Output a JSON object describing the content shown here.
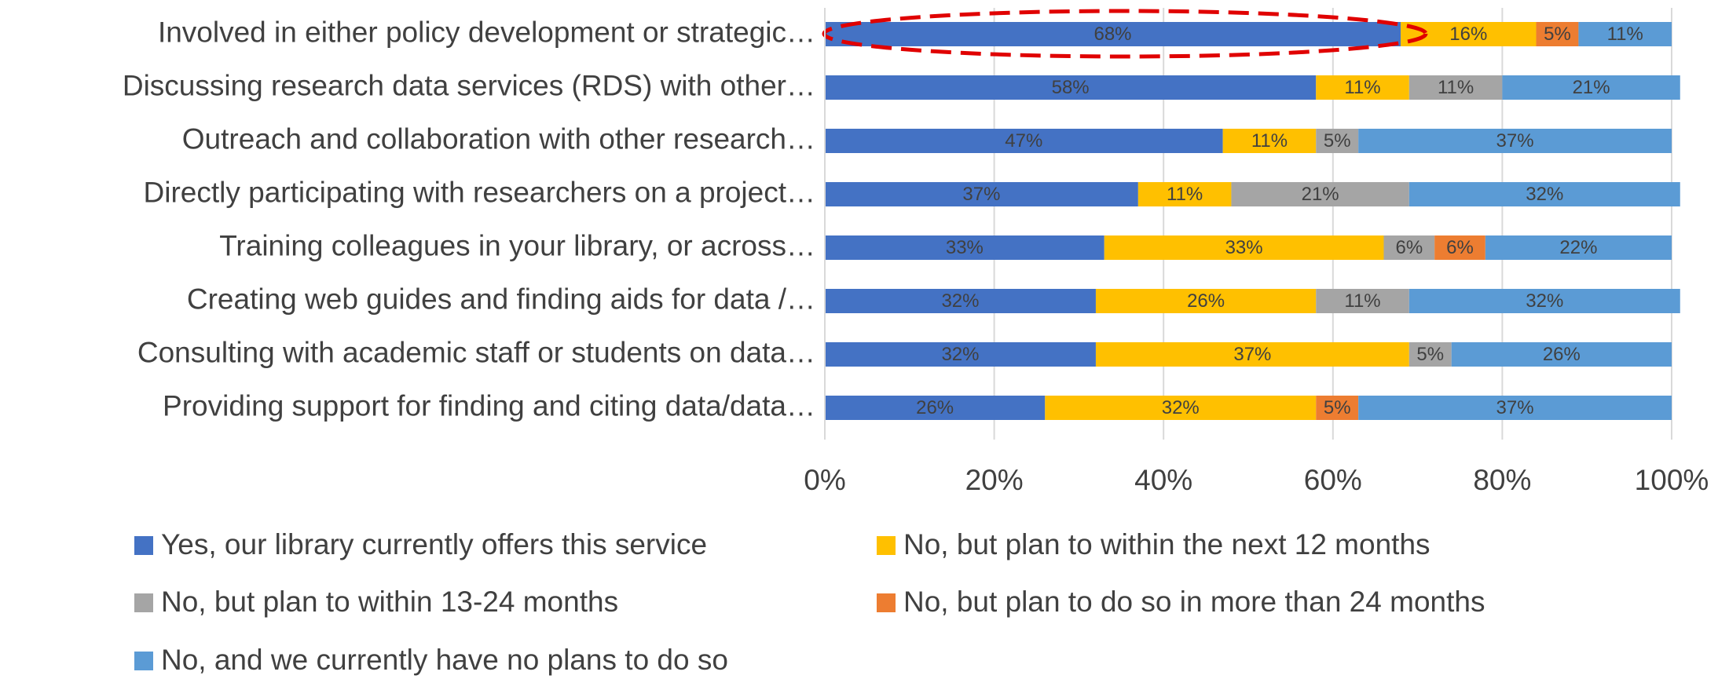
{
  "chart_data": {
    "type": "stacked_barh",
    "categories": [
      "Involved in either policy development or strategic…",
      "Discussing research data services (RDS) with other…",
      "Outreach and collaboration with other research…",
      "Directly participating with researchers on a project…",
      "Training colleagues in your library, or across…",
      "Creating web guides and finding aids for data /…",
      "Consulting with academic staff or students on data…",
      "Providing support for finding and citing data/data…"
    ],
    "series": [
      {
        "name": "Yes, our library currently offers this service",
        "color": "#4472c4",
        "values": [
          68,
          58,
          47,
          37,
          33,
          32,
          32,
          26
        ],
        "value_labels": [
          "68%",
          "58%",
          "47%",
          "37%",
          "33%",
          "32%",
          "32%",
          "26%"
        ]
      },
      {
        "name": "No, but plan to within the next 12 months",
        "color": "#ffc000",
        "values": [
          16,
          11,
          11,
          11,
          33,
          26,
          37,
          32
        ],
        "value_labels": [
          "16%",
          "11%",
          "11%",
          "11%",
          "33%",
          "26%",
          "37%",
          "32%"
        ]
      },
      {
        "name": "No, but plan to within 13-24 months",
        "color": "#a5a5a5",
        "values": [
          null,
          11,
          5,
          21,
          6,
          11,
          5,
          null
        ],
        "value_labels": [
          null,
          "11%",
          "5%",
          "21%",
          "6%",
          "11%",
          "5%",
          null
        ]
      },
      {
        "name": "No, but plan to do so in more than 24 months",
        "color": "#ed7d31",
        "values": [
          5,
          null,
          null,
          null,
          6,
          null,
          null,
          5
        ],
        "value_labels": [
          "5%",
          null,
          null,
          null,
          "6%",
          null,
          null,
          "5%"
        ]
      },
      {
        "name": "No, and we currently have no plans to do so",
        "color": "#5b9bd5",
        "values": [
          11,
          21,
          37,
          32,
          22,
          32,
          26,
          37
        ],
        "value_labels": [
          "11%",
          "21%",
          "37%",
          "32%",
          "22%",
          "32%",
          "26%",
          "37%"
        ]
      }
    ],
    "xlim": [
      0,
      100
    ],
    "xticks": [
      {
        "value": 0,
        "label": "0%"
      },
      {
        "value": 20,
        "label": "20%"
      },
      {
        "value": 40,
        "label": "40%"
      },
      {
        "value": 60,
        "label": "60%"
      },
      {
        "value": 80,
        "label": "80%"
      },
      {
        "value": 100,
        "label": "100%"
      }
    ],
    "grid": true
  }
}
